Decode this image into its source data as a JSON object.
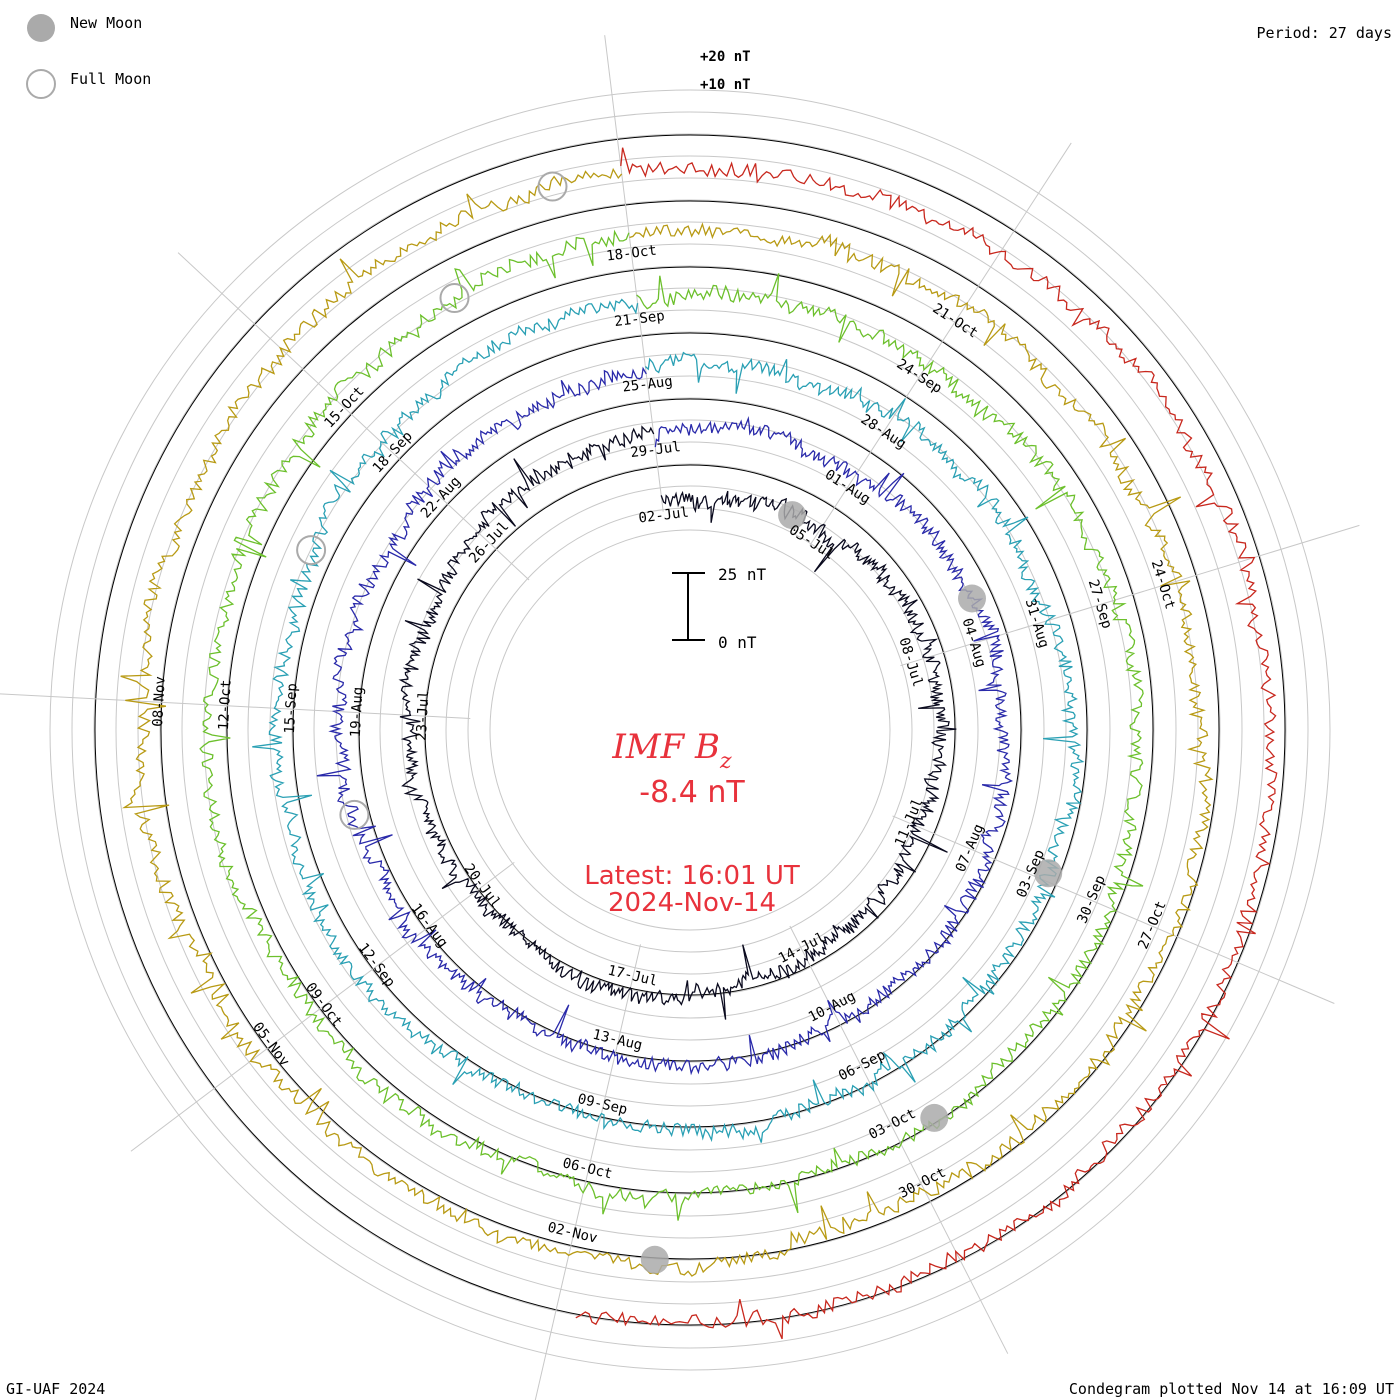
{
  "chart_data": {
    "type": "condegram",
    "title": "IMF B",
    "title_subscript": "z",
    "current_value": "-8.4 nT",
    "latest_time": "Latest: 16:01 UT",
    "latest_date": "2024-Nov-14",
    "period": "Period: 27 days",
    "ring_scale_labels": [
      "+20 nT",
      "+10 nT"
    ],
    "scale_bar_labels": [
      "25 nT",
      "0 nT"
    ],
    "legend": [
      {
        "label": "New Moon",
        "marker": "filled-gray-circle"
      },
      {
        "label": "Full Moon",
        "marker": "hollow-gray-circle"
      }
    ],
    "footer_left": "GI-UAF 2024",
    "footer_right": "Condegram plotted Nov 14 at 16:09 UT",
    "rotations": [
      {
        "index": 0,
        "color": "#0a0a1e",
        "dates": [
          {
            "label": "02-Jul",
            "frac": 0.0
          },
          {
            "label": "05-Jul",
            "frac": 0.111
          },
          {
            "label": "08-Jul",
            "frac": 0.222
          },
          {
            "label": "11-Jul",
            "frac": 0.333
          },
          {
            "label": "14-Jul",
            "frac": 0.444
          },
          {
            "label": "17-Jul",
            "frac": 0.556
          },
          {
            "label": "20-Jul",
            "frac": 0.667
          },
          {
            "label": "23-Jul",
            "frac": 0.778
          },
          {
            "label": "26-Jul",
            "frac": 0.889
          }
        ]
      },
      {
        "index": 1,
        "color": "#2a2aaa",
        "dates": [
          {
            "label": "29-Jul",
            "frac": 0.0
          },
          {
            "label": "01-Aug",
            "frac": 0.111
          },
          {
            "label": "04-Aug",
            "frac": 0.222
          },
          {
            "label": "07-Aug",
            "frac": 0.333
          },
          {
            "label": "10-Aug",
            "frac": 0.444
          },
          {
            "label": "13-Aug",
            "frac": 0.556
          },
          {
            "label": "16-Aug",
            "frac": 0.667
          },
          {
            "label": "19-Aug",
            "frac": 0.778
          },
          {
            "label": "22-Aug",
            "frac": 0.889
          }
        ]
      },
      {
        "index": 2,
        "color": "#2aa0b4",
        "dates": [
          {
            "label": "25-Aug",
            "frac": 0.0
          },
          {
            "label": "28-Aug",
            "frac": 0.111
          },
          {
            "label": "31-Aug",
            "frac": 0.222
          },
          {
            "label": "03-Sep",
            "frac": 0.333
          },
          {
            "label": "06-Sep",
            "frac": 0.444
          },
          {
            "label": "09-Sep",
            "frac": 0.556
          },
          {
            "label": "12-Sep",
            "frac": 0.667
          },
          {
            "label": "15-Sep",
            "frac": 0.778
          },
          {
            "label": "18-Sep",
            "frac": 0.889
          }
        ]
      },
      {
        "index": 3,
        "color": "#6cc02c",
        "dates": [
          {
            "label": "21-Sep",
            "frac": 0.0
          },
          {
            "label": "24-Sep",
            "frac": 0.111
          },
          {
            "label": "27-Sep",
            "frac": 0.222
          },
          {
            "label": "30-Sep",
            "frac": 0.333
          },
          {
            "label": "03-Oct",
            "frac": 0.444
          },
          {
            "label": "06-Oct",
            "frac": 0.556
          },
          {
            "label": "09-Oct",
            "frac": 0.667
          },
          {
            "label": "12-Oct",
            "frac": 0.778
          },
          {
            "label": "15-Oct",
            "frac": 0.889
          }
        ]
      },
      {
        "index": 4,
        "color": "#b89a14",
        "dates": [
          {
            "label": "18-Oct",
            "frac": 0.0
          },
          {
            "label": "21-Oct",
            "frac": 0.111
          },
          {
            "label": "24-Oct",
            "frac": 0.222
          },
          {
            "label": "27-Oct",
            "frac": 0.333
          },
          {
            "label": "30-Oct",
            "frac": 0.444
          },
          {
            "label": "02-Nov",
            "frac": 0.556
          },
          {
            "label": "05-Nov",
            "frac": 0.667
          },
          {
            "label": "08-Nov",
            "frac": 0.778
          }
        ]
      },
      {
        "index": 5,
        "color": "#c8281e",
        "dates": []
      }
    ],
    "moon_events": [
      {
        "type": "new",
        "rotation": 0,
        "frac": 0.09
      },
      {
        "type": "new",
        "rotation": 1,
        "frac": 0.2
      },
      {
        "type": "new",
        "rotation": 2,
        "frac": 0.33
      },
      {
        "type": "new",
        "rotation": 3,
        "frac": 0.43
      },
      {
        "type": "new",
        "rotation": 4,
        "frac": 0.53
      },
      {
        "type": "full",
        "rotation": 1,
        "frac": 0.73
      },
      {
        "type": "full",
        "rotation": 2,
        "frac": 0.84
      },
      {
        "type": "full",
        "rotation": 3,
        "frac": 0.94
      },
      {
        "type": "full",
        "rotation": 4,
        "frac": 0.98
      }
    ]
  }
}
